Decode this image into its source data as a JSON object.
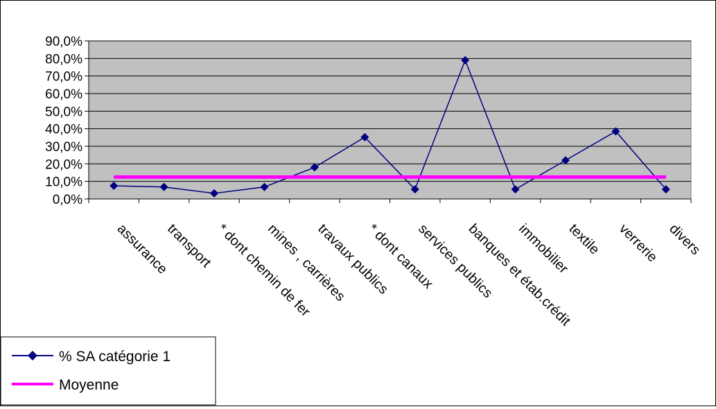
{
  "chart_data": {
    "type": "line",
    "title": "",
    "xlabel": "",
    "ylabel": "",
    "categories": [
      "assurance",
      "transport",
      "* dont chemin de fer",
      "mines , carrières",
      "travaux publics",
      "* dont canaux",
      "services publics",
      "banques et étab.crédit",
      "immobilier",
      "textile",
      "verrerie",
      "divers"
    ],
    "series": [
      {
        "name": "% SA catégorie 1",
        "values": [
          7.5,
          6.8,
          3.2,
          6.8,
          18.0,
          35.2,
          5.5,
          79.0,
          5.5,
          22.0,
          38.5,
          5.5
        ],
        "color": "#000080",
        "marker": "diamond"
      },
      {
        "name": "Moyenne",
        "values": [
          12.5,
          12.5,
          12.5,
          12.5,
          12.5,
          12.5,
          12.5,
          12.5,
          12.5,
          12.5,
          12.5,
          12.5
        ],
        "color": "#ff00ff",
        "marker": "none"
      }
    ],
    "ylim": [
      0,
      90
    ],
    "yticks": [
      "0,0%",
      "10,0%",
      "20,0%",
      "30,0%",
      "40,0%",
      "50,0%",
      "60,0%",
      "70,0%",
      "80,0%",
      "90,0%"
    ],
    "grid": true,
    "plot_background": "#c0c0c0",
    "legend_position": "bottom-left"
  }
}
